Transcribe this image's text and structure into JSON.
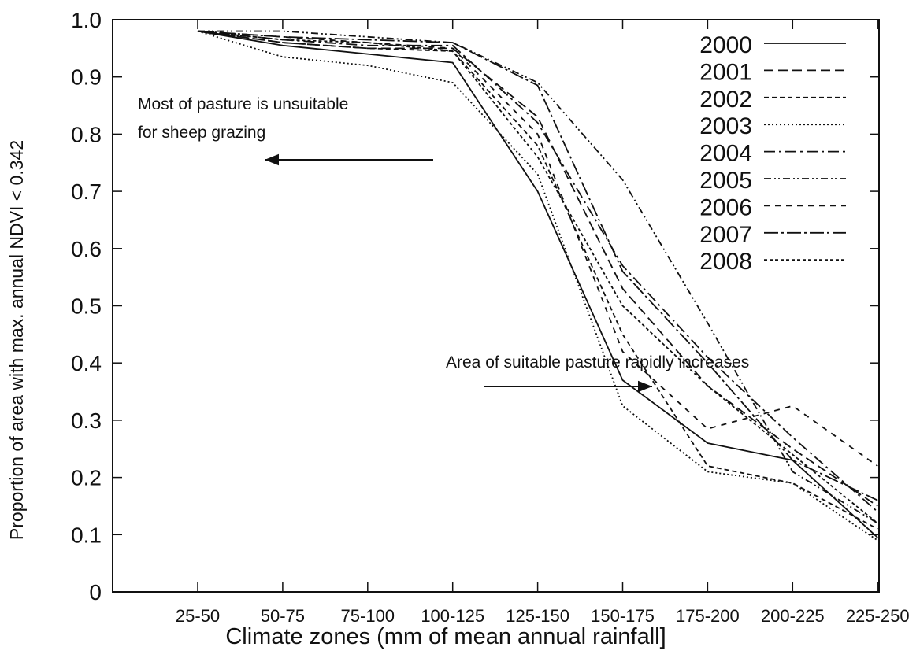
{
  "chart_data": {
    "type": "line",
    "title": "",
    "xlabel": "Climate zones (mm of mean annual rainfall]",
    "ylabel": "Proportion of area with max. annual NDVI < 0.342",
    "ylim": [
      0,
      1.0
    ],
    "yticks": [
      "0",
      "0.1",
      "0.2",
      "0.3",
      "0.4",
      "0.5",
      "0.6",
      "0.7",
      "0.8",
      "0.9",
      "1.0"
    ],
    "categories": [
      "25-50",
      "50-75",
      "75-100",
      "100-125",
      "125-150",
      "150-175",
      "175-200",
      "200-225",
      "225-250"
    ],
    "grid": false,
    "legend_position": "top-right",
    "series": [
      {
        "name": "2000",
        "dash": "solid",
        "values": [
          0.98,
          0.955,
          0.94,
          0.925,
          0.7,
          0.37,
          0.26,
          0.23,
          0.095
        ]
      },
      {
        "name": "2001",
        "dash": "dashed-long",
        "values": [
          0.98,
          0.96,
          0.95,
          0.95,
          0.83,
          0.53,
          0.36,
          0.25,
          0.15
        ]
      },
      {
        "name": "2002",
        "dash": "dashed-short",
        "values": [
          0.98,
          0.96,
          0.95,
          0.945,
          0.78,
          0.45,
          0.22,
          0.19,
          0.11
        ]
      },
      {
        "name": "2003",
        "dash": "dotted",
        "values": [
          0.98,
          0.935,
          0.92,
          0.89,
          0.73,
          0.325,
          0.21,
          0.19,
          0.09
        ]
      },
      {
        "name": "2004",
        "dash": "dash-dot",
        "values": [
          0.98,
          0.965,
          0.955,
          0.955,
          0.82,
          0.57,
          0.41,
          0.27,
          0.14
        ]
      },
      {
        "name": "2005",
        "dash": "dash-dot-dot",
        "values": [
          0.98,
          0.98,
          0.97,
          0.96,
          0.89,
          0.72,
          0.47,
          0.21,
          0.12
        ]
      },
      {
        "name": "2006",
        "dash": "dash-gap",
        "values": [
          0.98,
          0.97,
          0.96,
          0.95,
          0.8,
          0.42,
          0.285,
          0.325,
          0.22
        ]
      },
      {
        "name": "2007",
        "dash": "dash-dot-long",
        "values": [
          0.98,
          0.97,
          0.965,
          0.96,
          0.885,
          0.56,
          0.4,
          0.23,
          0.16
        ]
      },
      {
        "name": "2008",
        "dash": "fine-dash",
        "values": [
          0.98,
          0.965,
          0.96,
          0.945,
          0.76,
          0.5,
          0.36,
          0.24,
          0.12
        ]
      }
    ],
    "annotations": [
      {
        "text_lines": [
          "Most of pasture is unsuitable",
          "for sheep grazing"
        ],
        "arrow": "left"
      },
      {
        "text_lines": [
          "Area of suitable pasture rapidly increases"
        ],
        "arrow": "right"
      }
    ]
  }
}
